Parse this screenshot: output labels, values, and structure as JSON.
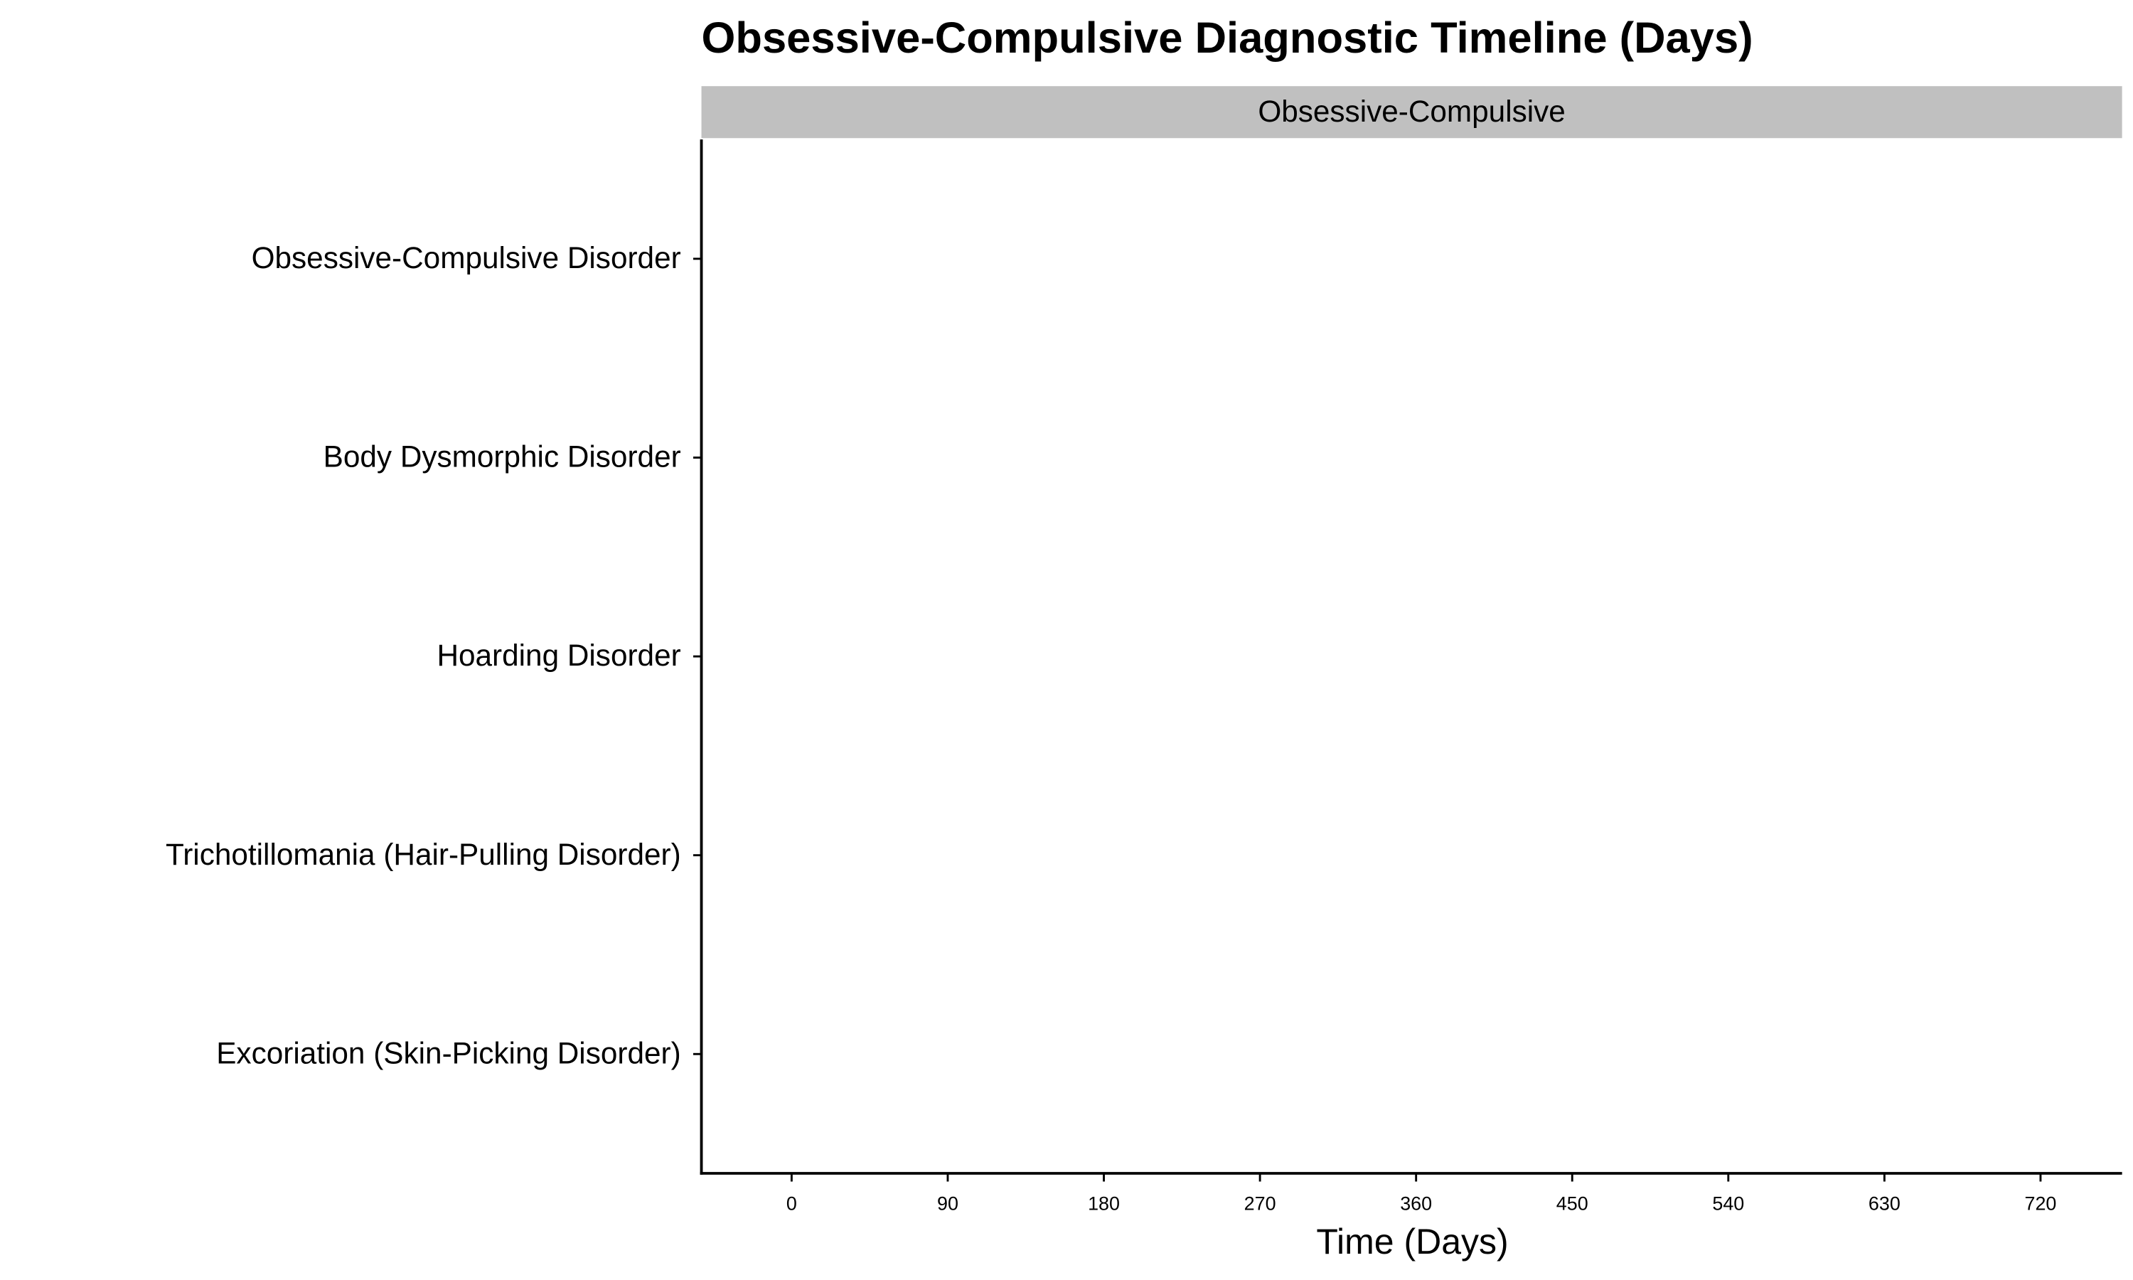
{
  "chart_data": {
    "type": "timeline",
    "title": "Obsessive-Compulsive Diagnostic Timeline (Days)",
    "facet": "Obsessive-Compulsive",
    "x_label": "Time (Days)",
    "categories": [
      "Obsessive-Compulsive Disorder",
      "Body Dysmorphic Disorder",
      "Hoarding Disorder",
      "Trichotillomania (Hair-Pulling Disorder)",
      "Excoriation (Skin-Picking Disorder)"
    ],
    "xlim": [
      -52,
      767
    ],
    "xticks": [
      0,
      90,
      180,
      270,
      360,
      450,
      540,
      630,
      720
    ],
    "grid": false
  }
}
